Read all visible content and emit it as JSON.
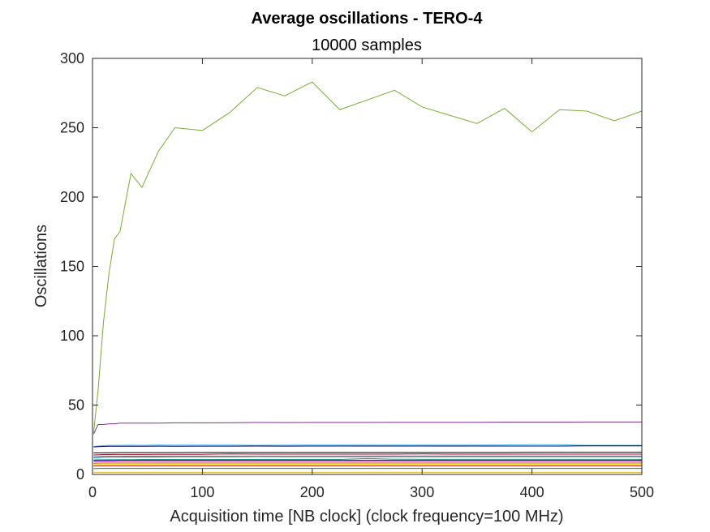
{
  "chart_data": {
    "type": "line",
    "title": "Average oscillations - TERO-4",
    "subtitle": "10000 samples",
    "xlabel": "Acquisition time [NB clock] (clock frequency=100 MHz)",
    "ylabel": "Oscillations",
    "xlim": [
      0,
      500
    ],
    "ylim": [
      0,
      300
    ],
    "xticks": [
      0,
      100,
      200,
      300,
      400,
      500
    ],
    "yticks": [
      0,
      50,
      100,
      150,
      200,
      250,
      300
    ],
    "grid": false,
    "x": [
      1,
      5,
      10,
      15,
      20,
      25,
      35,
      45,
      60,
      75,
      100,
      125,
      150,
      175,
      200,
      225,
      250,
      275,
      300,
      325,
      350,
      375,
      400,
      425,
      450,
      475,
      500
    ],
    "series": [
      {
        "color": "#77ac30",
        "values": [
          30,
          60,
          110,
          145,
          170,
          175,
          217,
          207,
          233,
          250,
          248,
          261,
          279,
          273,
          283,
          263,
          270,
          277,
          265,
          259,
          253,
          264,
          247,
          263,
          262,
          255,
          262
        ]
      },
      {
        "color": "#7e2f8e",
        "values": [
          29,
          36,
          36,
          36.5,
          36.5,
          37,
          37,
          37,
          37,
          37.2,
          37.2,
          37.3,
          37.5,
          37.4,
          37.5,
          37.5,
          37.5,
          37.6,
          37.6,
          37.6,
          37.6,
          37.7,
          37.7,
          37.7,
          37.8,
          37.8,
          37.8
        ]
      },
      {
        "color": "#4dbeee",
        "values": [
          20,
          20.5,
          20.8,
          21,
          21,
          21,
          21.1,
          21,
          21.2,
          21.1,
          21.2,
          21.2,
          21,
          21.1,
          21.2,
          21.2,
          21.1,
          21.2,
          21.2,
          21.1,
          21.2,
          21.3,
          21.5,
          21.4,
          21,
          21,
          21
        ]
      },
      {
        "color": "#000066",
        "values": [
          19.8,
          20,
          20.2,
          20.3,
          20.3,
          20.3,
          20.3,
          20.3,
          20.4,
          20.3,
          20.4,
          20.4,
          20.5,
          20.4,
          20.5,
          20.5,
          20.5,
          20.5,
          20.5,
          20.5,
          20.5,
          20.5,
          20.5,
          20.5,
          20.6,
          20.6,
          20.6
        ]
      },
      {
        "color": "#000000",
        "values": [
          15.5,
          15.6,
          15.6,
          15.6,
          15.6,
          15.7,
          15.7,
          15.7,
          15.7,
          15.7,
          15.8,
          15.8,
          15.8,
          15.8,
          15.8,
          15.8,
          15.8,
          15.8,
          15.8,
          15.8,
          15.8,
          15.8,
          15.9,
          15.9,
          15.9,
          15.9,
          15.9
        ]
      },
      {
        "color": "#a2142f",
        "values": [
          14,
          14.2,
          14.3,
          14.3,
          14.4,
          14.4,
          14.4,
          14.4,
          14.5,
          14.5,
          14.5,
          14.8,
          14.6,
          14.6,
          14.6,
          14.6,
          14.6,
          14.6,
          14.8,
          14.6,
          14.6,
          14.6,
          14.6,
          14.6,
          14.6,
          14.6,
          14.6
        ]
      },
      {
        "color": "#0072bd",
        "values": [
          12,
          12.2,
          12.4,
          12.5,
          12.5,
          12.5,
          12.6,
          12.6,
          12.6,
          12.7,
          12.7,
          12.7,
          12.9,
          12.8,
          12.8,
          12.8,
          12.8,
          12.8,
          12.8,
          12.8,
          12.8,
          12.8,
          12.8,
          12.8,
          12.8,
          12.8,
          12.8
        ]
      },
      {
        "color": "#808080",
        "values": [
          13,
          13,
          13.1,
          13.1,
          13.1,
          13.1,
          13.2,
          13.2,
          13.2,
          13.2,
          13.2,
          13.2,
          13.2,
          13.2,
          13.2,
          13.2,
          13.3,
          13.3,
          13.3,
          13.3,
          13.3,
          13.3,
          13.3,
          13.3,
          13.3,
          13.3,
          13.3
        ]
      },
      {
        "color": "#1f9e89",
        "values": [
          10.5,
          10.6,
          10.6,
          10.7,
          10.7,
          10.7,
          10.7,
          10.8,
          10.8,
          10.8,
          10.8,
          10.8,
          10.8,
          10.8,
          10.8,
          10.8,
          11.5,
          11,
          10.9,
          10.9,
          10.9,
          10.9,
          10.9,
          10.9,
          10.9,
          10.9,
          10.9
        ]
      },
      {
        "color": "#0000ff",
        "values": [
          10,
          10.1,
          10.1,
          10.1,
          10.1,
          10.2,
          10.2,
          10.2,
          10.2,
          10.2,
          10.2,
          10.2,
          10.2,
          10.2,
          10.2,
          10.2,
          10.2,
          10.2,
          10.2,
          10.2,
          10.2,
          10.2,
          10.2,
          10.2,
          10.2,
          10.2,
          10.2
        ]
      },
      {
        "color": "#ff00ff",
        "values": [
          9.2,
          9.3,
          9.3,
          9.3,
          9.3,
          9.3,
          9.3,
          9.3,
          9.3,
          9.3,
          9.3,
          9.3,
          9.3,
          9.3,
          9.3,
          9.3,
          9.3,
          9.3,
          9.3,
          9.3,
          9.3,
          9.3,
          9.3,
          9.3,
          9.3,
          9.3,
          9.3
        ]
      },
      {
        "color": "#d95319",
        "values": [
          8,
          8.1,
          8.2,
          8.2,
          8.2,
          8.2,
          8.2,
          8.2,
          8.2,
          8.2,
          8.2,
          8.2,
          8.2,
          8.2,
          8.2,
          8.2,
          8.2,
          8.2,
          8.2,
          8.2,
          8.2,
          8.2,
          8.2,
          8.2,
          8.2,
          8.2,
          8.2
        ]
      },
      {
        "color": "#e5e500",
        "values": [
          7.2,
          7.2,
          7.2,
          7.2,
          7.2,
          7.2,
          7.2,
          7.2,
          7.2,
          7.2,
          7.2,
          7.2,
          7.2,
          7.2,
          7.2,
          7.2,
          7.2,
          7.2,
          7.2,
          7.2,
          7.2,
          7.2,
          7.2,
          7.2,
          7.2,
          7.2,
          7.2
        ]
      },
      {
        "color": "#cc0000",
        "values": [
          6.2,
          6.3,
          6.3,
          6.3,
          6.3,
          6.3,
          6.3,
          6.3,
          6.3,
          6.3,
          6.3,
          6.3,
          6.3,
          6.3,
          6.3,
          6.3,
          6.3,
          6.3,
          6.3,
          6.3,
          6.3,
          6.3,
          6.3,
          6.3,
          6.3,
          6.3,
          6.3
        ]
      },
      {
        "color": "#00a000",
        "values": [
          4.2,
          4.3,
          4.3,
          4.3,
          4.3,
          4.3,
          4.3,
          4.3,
          4.3,
          4.3,
          4.3,
          4.3,
          4.3,
          4.3,
          4.3,
          4.3,
          4.3,
          4.3,
          4.3,
          4.3,
          4.3,
          4.3,
          4.3,
          4.3,
          4.3,
          4.3,
          4.3
        ]
      },
      {
        "color": "#edb120",
        "values": [
          1.5,
          1.5,
          1.5,
          1.5,
          1.5,
          1.5,
          1.5,
          1.5,
          1.5,
          1.5,
          1.5,
          1.5,
          1.5,
          1.5,
          1.5,
          1.5,
          1.5,
          1.5,
          1.5,
          1.5,
          1.5,
          1.5,
          1.5,
          1.5,
          1.5,
          1.5,
          1.5
        ]
      }
    ]
  }
}
